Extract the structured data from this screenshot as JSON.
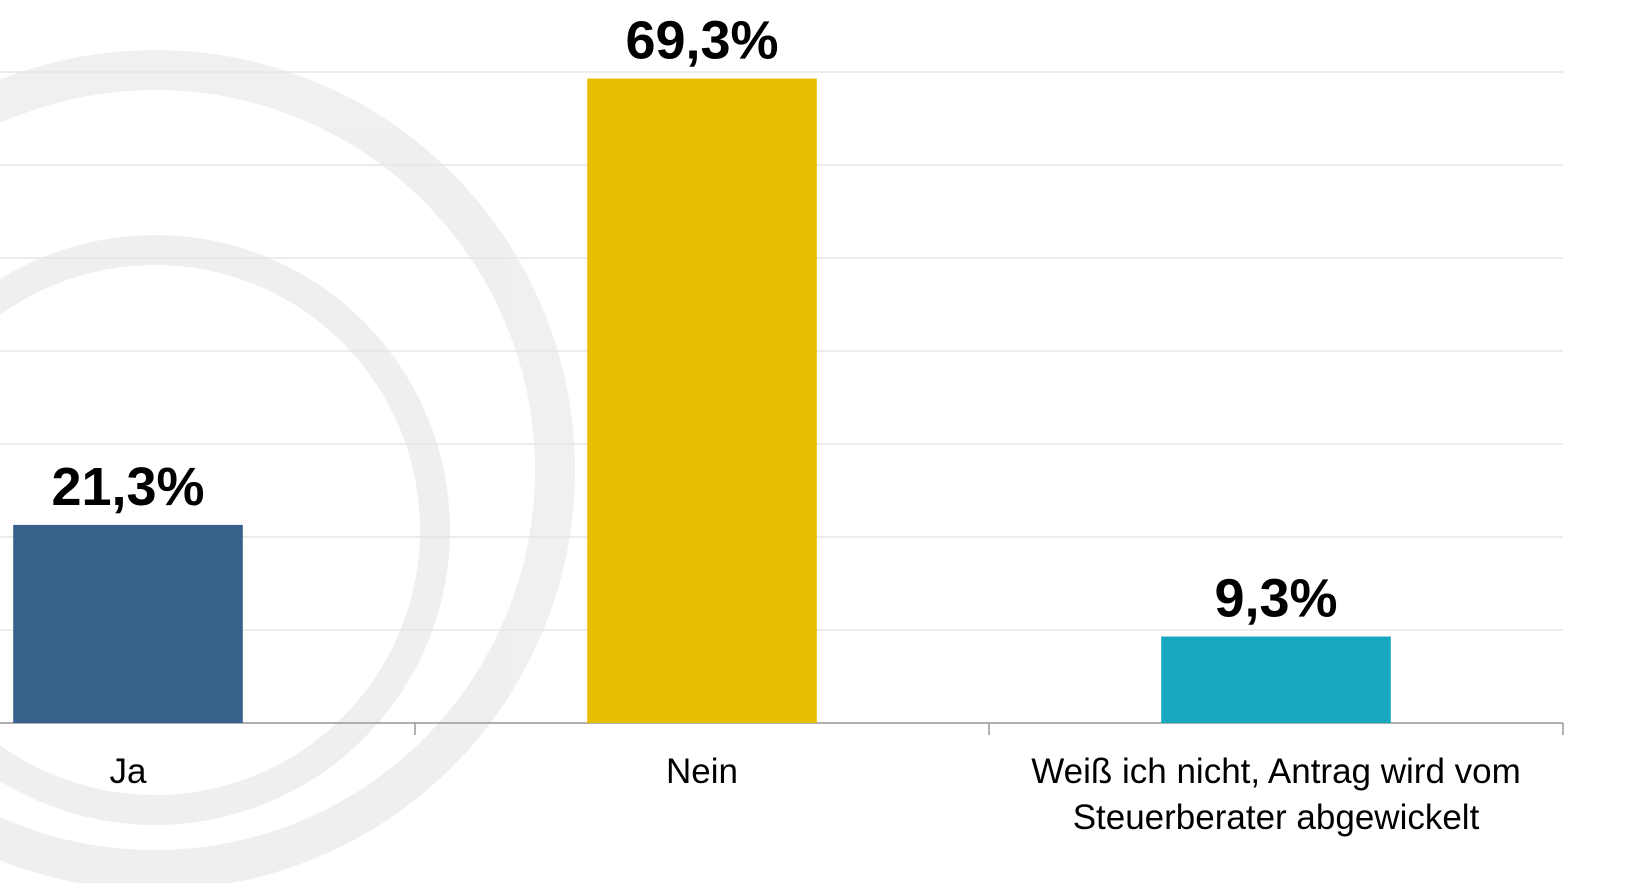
{
  "chart_data": {
    "type": "bar",
    "categories": [
      "Ja",
      "Nein",
      "Weiß ich nicht, Antrag wird vom Steuerberater abgewickelt"
    ],
    "values": [
      21.3,
      69.3,
      9.3
    ],
    "value_labels": [
      "21,3%",
      "69,3%",
      "9,3%"
    ],
    "colors": [
      "#37618a",
      "#e8bf00",
      "#17a8c0"
    ],
    "ylim": [
      0,
      70
    ],
    "yticks": [
      0,
      10,
      20,
      30,
      40,
      50,
      60,
      70
    ],
    "grid": true
  }
}
